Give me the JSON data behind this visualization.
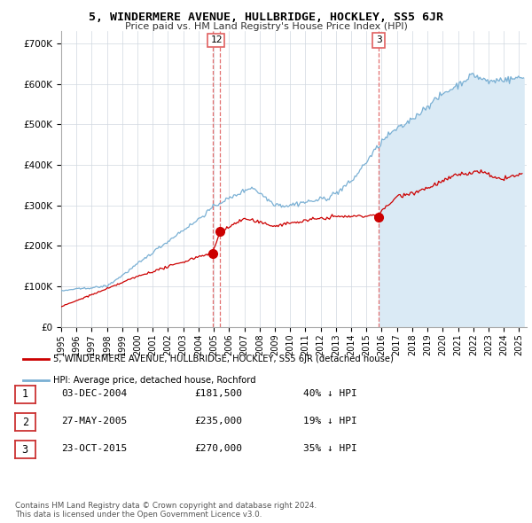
{
  "title": "5, WINDERMERE AVENUE, HULLBRIDGE, HOCKLEY, SS5 6JR",
  "subtitle": "Price paid vs. HM Land Registry's House Price Index (HPI)",
  "ylabel_ticks": [
    "£0",
    "£100K",
    "£200K",
    "£300K",
    "£400K",
    "£500K",
    "£600K",
    "£700K"
  ],
  "ytick_values": [
    0,
    100000,
    200000,
    300000,
    400000,
    500000,
    600000,
    700000
  ],
  "ylim": [
    0,
    730000
  ],
  "xlim_start": 1995.0,
  "xlim_end": 2025.5,
  "transactions": [
    {
      "date_num": 2004.92,
      "price": 181500,
      "label": "1"
    },
    {
      "date_num": 2005.41,
      "price": 235000,
      "label": "2"
    },
    {
      "date_num": 2015.81,
      "price": 270000,
      "label": "3"
    }
  ],
  "vline_groups": [
    {
      "x": 2005.0,
      "labels": "12"
    },
    {
      "x": 2015.81,
      "labels": "3"
    }
  ],
  "legend_line1": "5, WINDERMERE AVENUE, HULLBRIDGE, HOCKLEY, SS5 6JR (detached house)",
  "legend_line2": "HPI: Average price, detached house, Rochford",
  "table_rows": [
    {
      "num": "1",
      "date": "03-DEC-2004",
      "price": "£181,500",
      "pct": "40% ↓ HPI"
    },
    {
      "num": "2",
      "date": "27-MAY-2005",
      "price": "£235,000",
      "pct": "19% ↓ HPI"
    },
    {
      "num": "3",
      "date": "23-OCT-2015",
      "price": "£270,000",
      "pct": "35% ↓ HPI"
    }
  ],
  "footer": "Contains HM Land Registry data © Crown copyright and database right 2024.\nThis data is licensed under the Open Government Licence v3.0.",
  "hpi_color": "#7ab0d4",
  "hpi_fill_color": "#daeaf5",
  "price_color": "#cc0000",
  "vline_color": "#e06060",
  "grid_color": "#d0d8e0",
  "background_color": "#ffffff"
}
